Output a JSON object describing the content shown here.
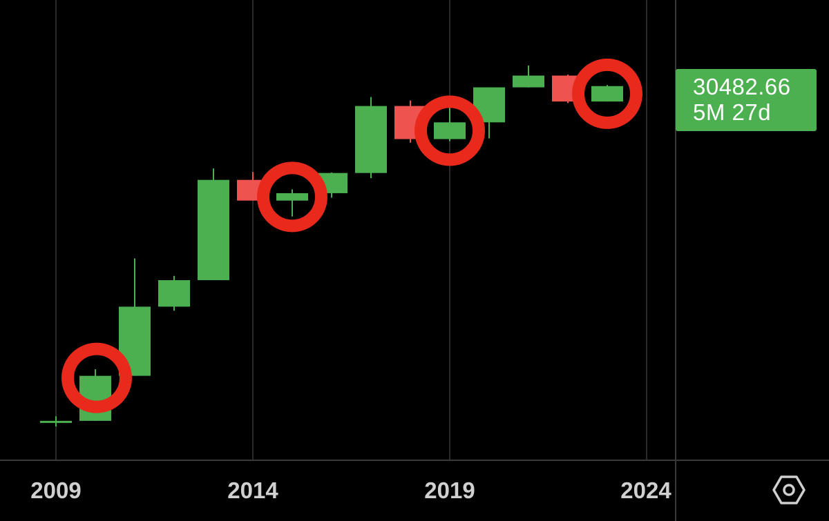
{
  "chart_data": {
    "type": "candlestick",
    "interval": "yearly",
    "scale": "log",
    "x_ticks": [
      "2009",
      "2014",
      "2019",
      "2024"
    ],
    "candles": [
      {
        "year": 2009,
        "open": 0.05,
        "high": 0.06,
        "low": 0.04,
        "close": 0.05
      },
      {
        "year": 2010,
        "open": 0.05,
        "high": 0.39,
        "low": 0.05,
        "close": 0.3
      },
      {
        "year": 2011,
        "open": 0.3,
        "high": 32,
        "low": 0.3,
        "close": 4.7
      },
      {
        "year": 2012,
        "open": 4.7,
        "high": 16,
        "low": 4.0,
        "close": 13.5
      },
      {
        "year": 2013,
        "open": 13.5,
        "high": 1150,
        "low": 13.5,
        "close": 730
      },
      {
        "year": 2014,
        "open": 730,
        "high": 1000,
        "low": 320,
        "close": 320
      },
      {
        "year": 2015,
        "open": 320,
        "high": 500,
        "low": 170,
        "close": 430
      },
      {
        "year": 2016,
        "open": 430,
        "high": 980,
        "low": 360,
        "close": 960
      },
      {
        "year": 2017,
        "open": 960,
        "high": 19700,
        "low": 780,
        "close": 13800
      },
      {
        "year": 2018,
        "open": 13800,
        "high": 17200,
        "low": 3200,
        "close": 3700
      },
      {
        "year": 2019,
        "open": 3700,
        "high": 13800,
        "low": 3400,
        "close": 7200
      },
      {
        "year": 2020,
        "open": 7200,
        "high": 29000,
        "low": 3800,
        "close": 29000
      },
      {
        "year": 2021,
        "open": 29000,
        "high": 69000,
        "low": 28800,
        "close": 46300
      },
      {
        "year": 2022,
        "open": 46300,
        "high": 48200,
        "low": 15500,
        "close": 16500
      },
      {
        "year": 2023,
        "open": 16500,
        "high": 31800,
        "low": 16500,
        "close": 30482.66
      }
    ],
    "highlighted_years": [
      2010,
      2015,
      2019,
      2023
    ],
    "last_price": "30482.66",
    "last_price_label": "5M 27d",
    "colors": {
      "up": "#4caf50",
      "down": "#ef5350",
      "highlight_ring": "#e8291c",
      "grid": "#2a2a2a",
      "background": "#000000",
      "axis_text": "#d0d0d0"
    }
  },
  "price_tag": {
    "value": "30482.66",
    "countdown": "5M 27d"
  },
  "axis": {
    "tick_2009": "2009",
    "tick_2014": "2014",
    "tick_2019": "2019",
    "tick_2024": "2024"
  },
  "controls": {
    "settings_icon": "hexagon-settings-icon"
  }
}
